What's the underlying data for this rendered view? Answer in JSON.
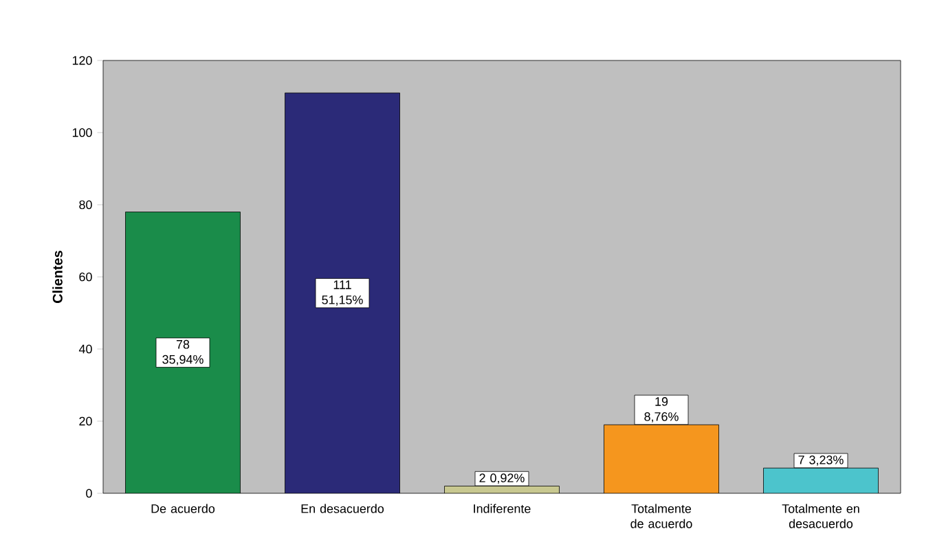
{
  "chart_data": {
    "type": "bar",
    "ylabel": "Clientes",
    "categories": [
      "De acuerdo",
      "En desacuerdo",
      "Indiferente",
      "Totalmente de acuerdo",
      "Totalmente en desacuerdo"
    ],
    "values": [
      78,
      111,
      2,
      19,
      7
    ],
    "value_labels": [
      "78 35,94%",
      "111 51,15%",
      "2 0,92%",
      "19 8,76%",
      "7 3,23%"
    ],
    "colors": [
      "#1a8c4a",
      "#2b2a78",
      "#c8c890",
      "#f5961e",
      "#4cc4cc"
    ],
    "ylim": [
      0,
      120
    ],
    "yticks": [
      0,
      20,
      40,
      60,
      80,
      100,
      120
    ]
  }
}
